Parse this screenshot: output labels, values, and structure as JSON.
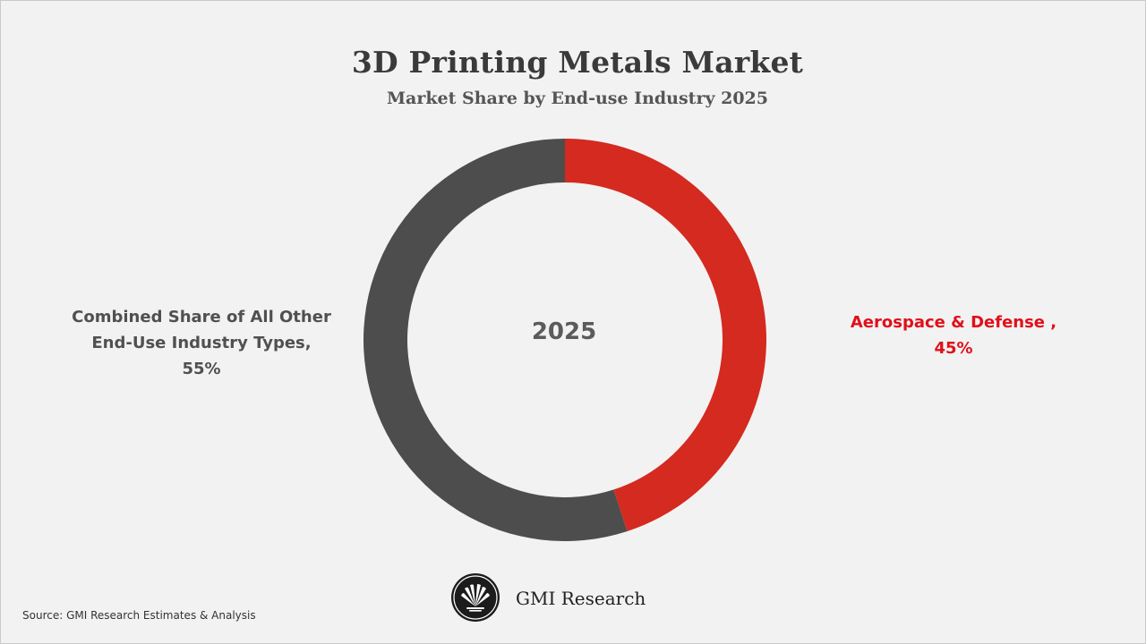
{
  "chart_data": {
    "type": "pie",
    "style": "donut",
    "title": "3D Printing Metals Market",
    "subtitle": "Market Share by End-use Industry 2025",
    "center_text": "2025",
    "slices": [
      {
        "name": "Aerospace & Defense ,",
        "value": 45,
        "value_label": "45%",
        "color": "#d42a20"
      },
      {
        "name": "Combined Share of All Other End-Use Industry Types,",
        "name_lines": [
          "Combined Share of All Other",
          "End-Use Industry Types,"
        ],
        "value": 55,
        "value_label": "55%",
        "color": "#4d4d4d"
      }
    ],
    "start_angle": "12 o'clock",
    "direction": "clockwise",
    "legend": "none (direct labels)"
  },
  "brand": {
    "name": "GMI Research",
    "logo_icon": "gmi-fan-logo-icon"
  },
  "source_text": "Source: GMI Research Estimates & Analysis",
  "colors": {
    "background": "#f2f2f2",
    "accent_red": "#e0101a",
    "dark_gray": "#4d4d4d"
  }
}
